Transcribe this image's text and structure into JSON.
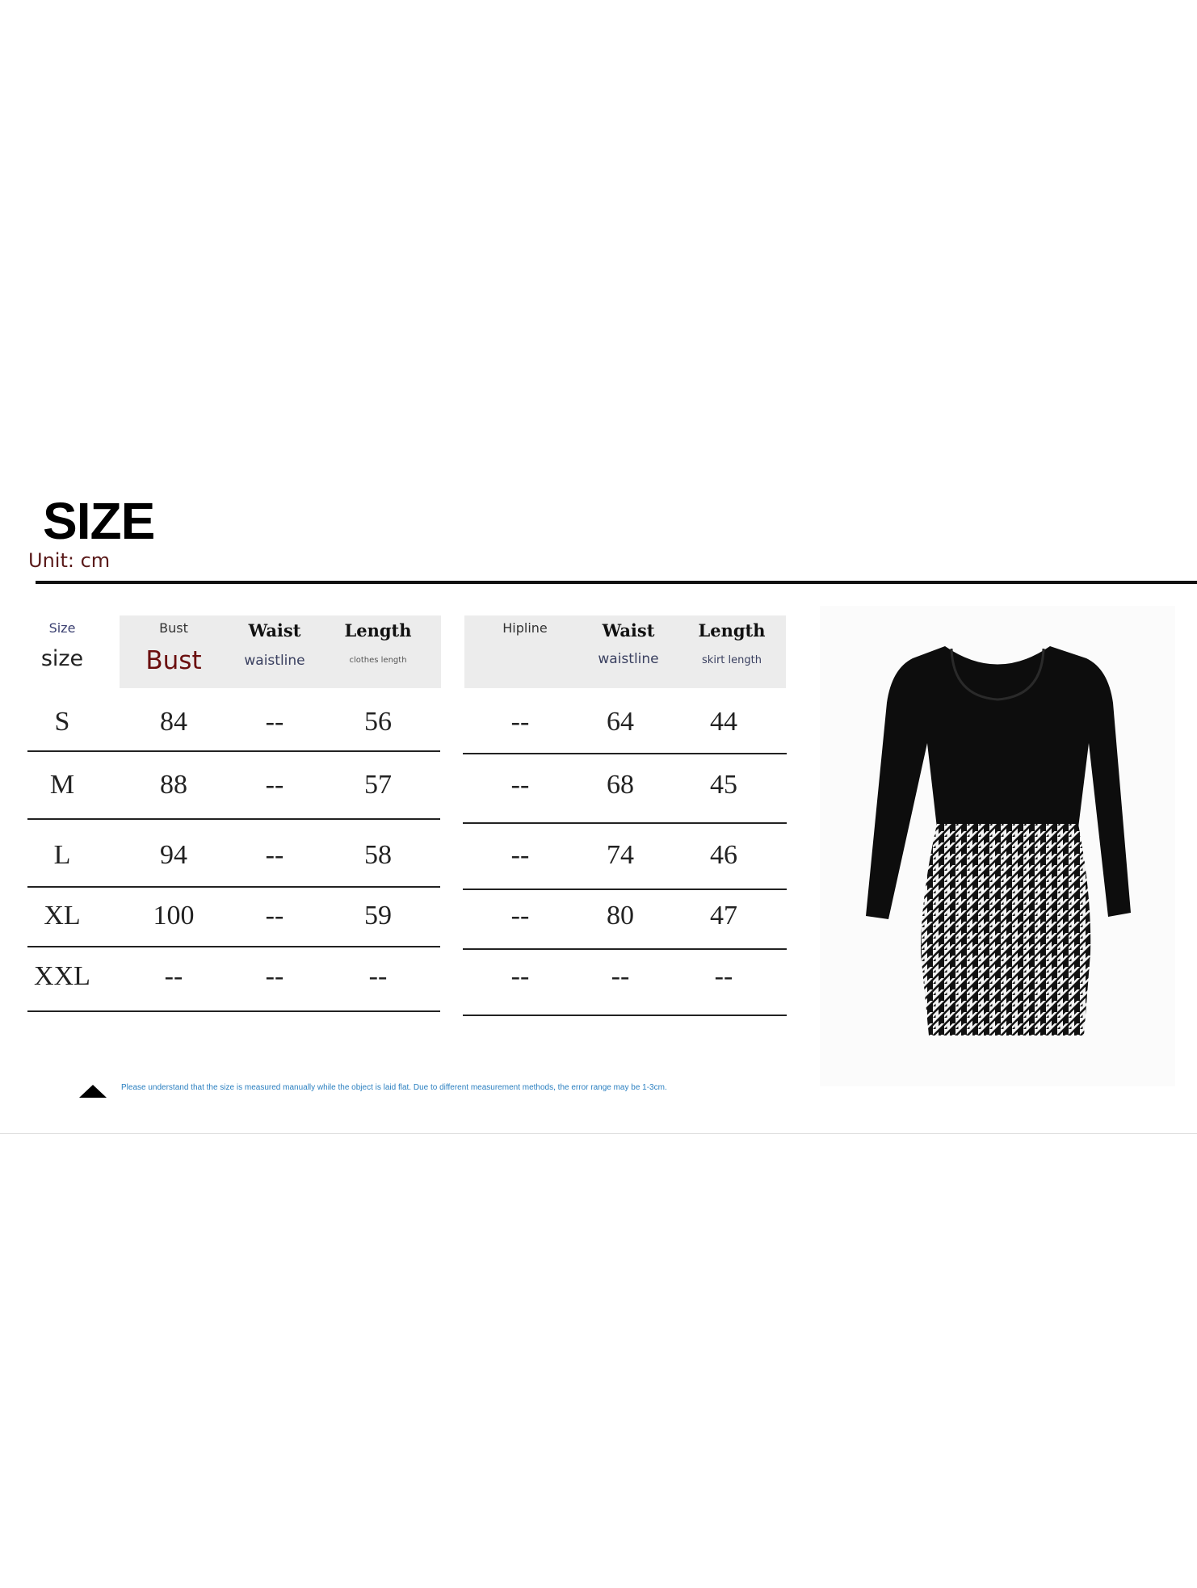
{
  "title": "SIZE",
  "unit": "Unit: cm",
  "top_table": {
    "headers": [
      {
        "top": "Size",
        "bottom": "size"
      },
      {
        "top": "Bust",
        "bottom": "Bust"
      },
      {
        "top": "Waist",
        "bottom": "waistline"
      },
      {
        "top": "Length",
        "bottom": "clothes length"
      }
    ],
    "rows": [
      [
        "S",
        "84",
        "--",
        "56"
      ],
      [
        "M",
        "88",
        "--",
        "57"
      ],
      [
        "L",
        "94",
        "--",
        "58"
      ],
      [
        "XL",
        "100",
        "--",
        "59"
      ],
      [
        "XXL",
        "--",
        "--",
        "--"
      ]
    ]
  },
  "skirt_table": {
    "headers": [
      {
        "top": "Hipline",
        "bottom": ""
      },
      {
        "top": "Waist",
        "bottom": "waistline"
      },
      {
        "top": "Length",
        "bottom": "skirt length"
      }
    ],
    "rows": [
      [
        "--",
        "64",
        "44"
      ],
      [
        "--",
        "68",
        "45"
      ],
      [
        "--",
        "74",
        "46"
      ],
      [
        "--",
        "80",
        "47"
      ],
      [
        "--",
        "--",
        "--"
      ]
    ]
  },
  "note": "Please understand that the size is measured manually while the object is laid flat. Due to different measurement methods, the error range may be 1-3cm.",
  "colors": {
    "bust_accent": "#6b0f0f",
    "note_text": "#2a7fc0",
    "header_bg": "#ececec"
  },
  "icons": {
    "note": "triangle-up-icon"
  },
  "image": {
    "alt": "black ribbed long-sleeve top with houndstooth mini skirt"
  }
}
